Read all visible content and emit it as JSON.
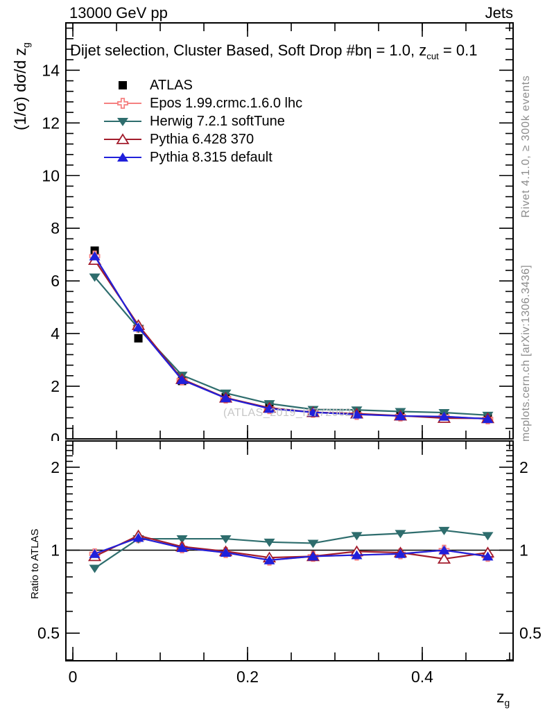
{
  "header": {
    "left": "13000 GeV pp",
    "right": "Jets"
  },
  "plot_title": {
    "pre": "Dijet selection, Cluster Based, Soft Drop #bη = 1.0, z",
    "sub": "cut",
    "post": " = 0.1"
  },
  "watermark": "(ATLAS_2019_I1772062)",
  "side_notes": {
    "top": "Rivet 4.1.0, ≥ 300k events",
    "bottom": "mcplots.cern.ch [arXiv:1306.3436]"
  },
  "axis_labels": {
    "main_y_pre": "(1/σ) dσ/d z",
    "main_y_sub": "g",
    "ratio_y": "Ratio to ATLAS",
    "x_pre": "z",
    "x_sub": "g"
  },
  "colors": {
    "frame": "#000000",
    "side_note": "#8c8c8c",
    "watermark": "#c6c6c6"
  },
  "chart_data": {
    "type": "line",
    "title": "Dijet selection, Cluster Based, Soft Drop #bη = 1.0, z_cut = 0.1",
    "xlabel": "z_g",
    "ylabel_main": "(1/σ) dσ/d z_g",
    "ylabel_ratio": "Ratio to ATLAS",
    "legend_position": "top-left",
    "x": [
      0.025,
      0.075,
      0.125,
      0.175,
      0.225,
      0.275,
      0.325,
      0.375,
      0.425,
      0.475
    ],
    "xlim": [
      -0.008,
      0.504
    ],
    "x_minor_step": 0.05,
    "xticks": [
      {
        "v": 0,
        "l": "0"
      },
      {
        "v": 0.2,
        "l": "0.2"
      },
      {
        "v": 0.4,
        "l": "0.4"
      }
    ],
    "main": {
      "ylim": [
        0,
        15.8
      ],
      "y_minor_step": 0.4,
      "yticks": [
        {
          "v": 0,
          "l": "0"
        },
        {
          "v": 2,
          "l": "2"
        },
        {
          "v": 4,
          "l": "4"
        },
        {
          "v": 6,
          "l": "6"
        },
        {
          "v": 8,
          "l": "8"
        },
        {
          "v": 10,
          "l": "10"
        },
        {
          "v": 12,
          "l": "12"
        },
        {
          "v": 14,
          "l": "14"
        }
      ]
    },
    "ratio": {
      "yscale": "log",
      "ylim": [
        0.397,
        2.49
      ],
      "ref_line": 1,
      "yticks": [
        {
          "v": 0.5,
          "l": "0.5"
        },
        {
          "v": 1,
          "l": "1"
        },
        {
          "v": 2,
          "l": "2"
        }
      ],
      "yminors": [
        0.4,
        0.6,
        0.7,
        0.8,
        0.9,
        1.1,
        1.2,
        1.3,
        1.4,
        1.5,
        1.6,
        1.7,
        1.8,
        1.9,
        2.1,
        2.2,
        2.3,
        2.4
      ]
    },
    "series": [
      {
        "id": "atlas",
        "name": "ATLAS",
        "color": "#000000",
        "marker": "square",
        "open": false,
        "line": false,
        "values": [
          7.15,
          3.82,
          2.2,
          1.58,
          1.25,
          1.06,
          0.97,
          0.9,
          0.85,
          0.8
        ],
        "ratio": null
      },
      {
        "id": "epos",
        "name": "Epos 1.99.crmc.1.6.0 lhc",
        "color": "#f58080",
        "marker": "cross",
        "open": true,
        "line": true,
        "values": [
          6.94,
          4.24,
          2.24,
          1.55,
          1.15,
          1.01,
          0.93,
          0.87,
          0.85,
          0.76
        ],
        "ratio": [
          0.97,
          1.11,
          1.02,
          0.98,
          0.92,
          0.95,
          0.96,
          0.97,
          1.0,
          0.95
        ]
      },
      {
        "id": "herwig",
        "name": "Herwig 7.2.1 softTune",
        "color": "#2e6d6d",
        "marker": "triangle-down",
        "open": false,
        "line": true,
        "values": [
          6.15,
          4.2,
          2.42,
          1.74,
          1.34,
          1.12,
          1.1,
          1.04,
          1.0,
          0.9
        ],
        "ratio": [
          0.86,
          1.1,
          1.1,
          1.1,
          1.07,
          1.06,
          1.13,
          1.15,
          1.18,
          1.13
        ]
      },
      {
        "id": "pythia6",
        "name": "Pythia 6.428 370",
        "color": "#a21c2c",
        "marker": "triangle-up",
        "open": true,
        "line": true,
        "values": [
          6.79,
          4.32,
          2.27,
          1.56,
          1.18,
          1.01,
          0.96,
          0.88,
          0.79,
          0.78
        ],
        "ratio": [
          0.95,
          1.13,
          1.03,
          0.99,
          0.94,
          0.95,
          0.99,
          0.98,
          0.93,
          0.98
        ]
      },
      {
        "id": "pythia8",
        "name": "Pythia 8.315 default",
        "color": "#2020db",
        "marker": "triangle-up",
        "open": false,
        "line": true,
        "values": [
          6.94,
          4.24,
          2.24,
          1.55,
          1.15,
          1.01,
          0.93,
          0.87,
          0.85,
          0.76
        ],
        "ratio": [
          0.97,
          1.11,
          1.02,
          0.98,
          0.92,
          0.95,
          0.96,
          0.97,
          1.0,
          0.95
        ]
      }
    ]
  }
}
